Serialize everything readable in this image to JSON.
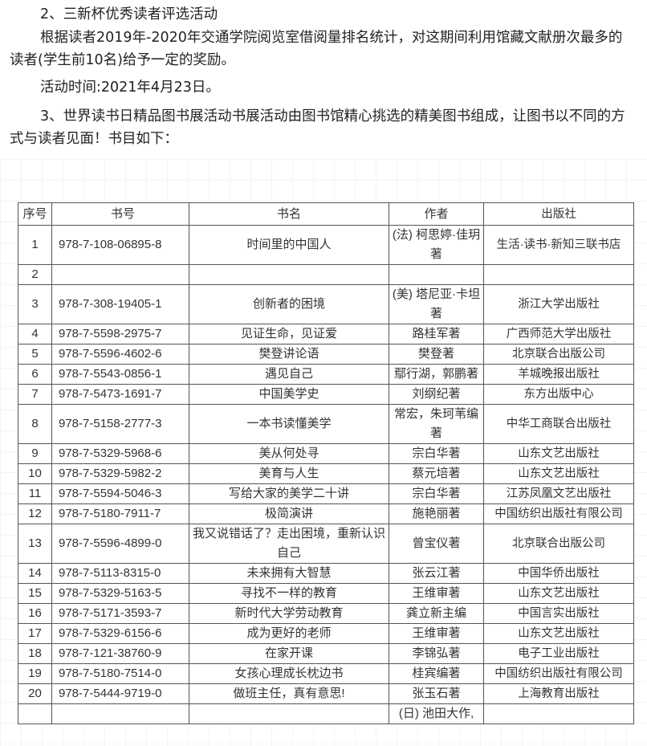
{
  "paragraphs": {
    "p1": "2、三新杯优秀读者评选活动",
    "p2": "根据读者2019年-2020年交通学院阅览室借阅量排名统计，对这期间利用馆藏文献册次最多的读者(学生前10名)给予一定的奖励。",
    "p3": "活动时间:2021年4月23日。",
    "p4": "3、世界读书日精品图书展活动书展活动由图书馆精心挑选的精美图书组成，让图书以不同的方式与读者见面！书目如下："
  },
  "table": {
    "headers": [
      "序号",
      "书号",
      "书名",
      "作者",
      "出版社"
    ],
    "rows": [
      [
        "1",
        "978-7-108-06895-8",
        "时间里的中国人",
        "(法) 柯思婷·佳玥著",
        "生活·读书·新知三联书店"
      ],
      [
        "2",
        "",
        "",
        "",
        ""
      ],
      [
        "3",
        "978-7-308-19405-1",
        "创新者的困境",
        "(美) 塔尼亚·卡坦著",
        "浙江大学出版社"
      ],
      [
        "4",
        "978-7-5598-2975-7",
        "见证生命，见证爱",
        "路桂军著",
        "广西师范大学出版社"
      ],
      [
        "5",
        "978-7-5596-4602-6",
        "樊登讲论语",
        "樊登著",
        "北京联合出版公司"
      ],
      [
        "6",
        "978-7-5543-0856-1",
        "遇见自己",
        "鄢行湖，郭鹏著",
        "羊城晚报出版社"
      ],
      [
        "7",
        "978-7-5473-1691-7",
        "中国美学史",
        "刘纲纪著",
        "东方出版中心"
      ],
      [
        "8",
        "978-7-5158-2777-3",
        "一本书读懂美学",
        "常宏，朱珂苇编著",
        "中华工商联合出版社"
      ],
      [
        "9",
        "978-7-5329-5968-6",
        "美从何处寻",
        "宗白华著",
        "山东文艺出版社"
      ],
      [
        "10",
        "978-7-5329-5982-2",
        "美育与人生",
        "蔡元培著",
        "山东文艺出版社"
      ],
      [
        "11",
        "978-7-5594-5046-3",
        "写给大家的美学二十讲",
        "宗白华著",
        "江苏凤凰文艺出版社"
      ],
      [
        "12",
        "978-7-5180-7911-7",
        "极简演讲",
        "施艳丽著",
        "中国纺织出版社有限公司"
      ],
      [
        "13",
        "978-7-5596-4899-0",
        "我又说错话了？走出困境，重新认识自己",
        "曾宝仪著",
        "北京联合出版公司"
      ],
      [
        "14",
        "978-7-5113-8315-0",
        "未来拥有大智慧",
        "张云江著",
        "中国华侨出版社"
      ],
      [
        "15",
        "978-7-5329-5163-5",
        "寻找不一样的教育",
        "王维审著",
        "山东文艺出版社"
      ],
      [
        "16",
        "978-7-5171-3593-7",
        "新时代大学劳动教育",
        "龚立新主编",
        "中国言实出版社"
      ],
      [
        "17",
        "978-7-5329-6156-6",
        "成为更好的老师",
        "王维审著",
        "山东文艺出版社"
      ],
      [
        "18",
        "978-7-121-38760-9",
        "在家开课",
        "李锦弘著",
        "电子工业出版社"
      ],
      [
        "19",
        "978-7-5180-7514-0",
        "女孩心理成长枕边书",
        "桂宾编著",
        "中国纺织出版社有限公司"
      ],
      [
        "20",
        "978-7-5444-9719-0",
        "做班主任，真有意思!",
        "张玉石著",
        "上海教育出版社"
      ],
      [
        "",
        "",
        "",
        "(日) 池田大作,",
        ""
      ]
    ]
  }
}
